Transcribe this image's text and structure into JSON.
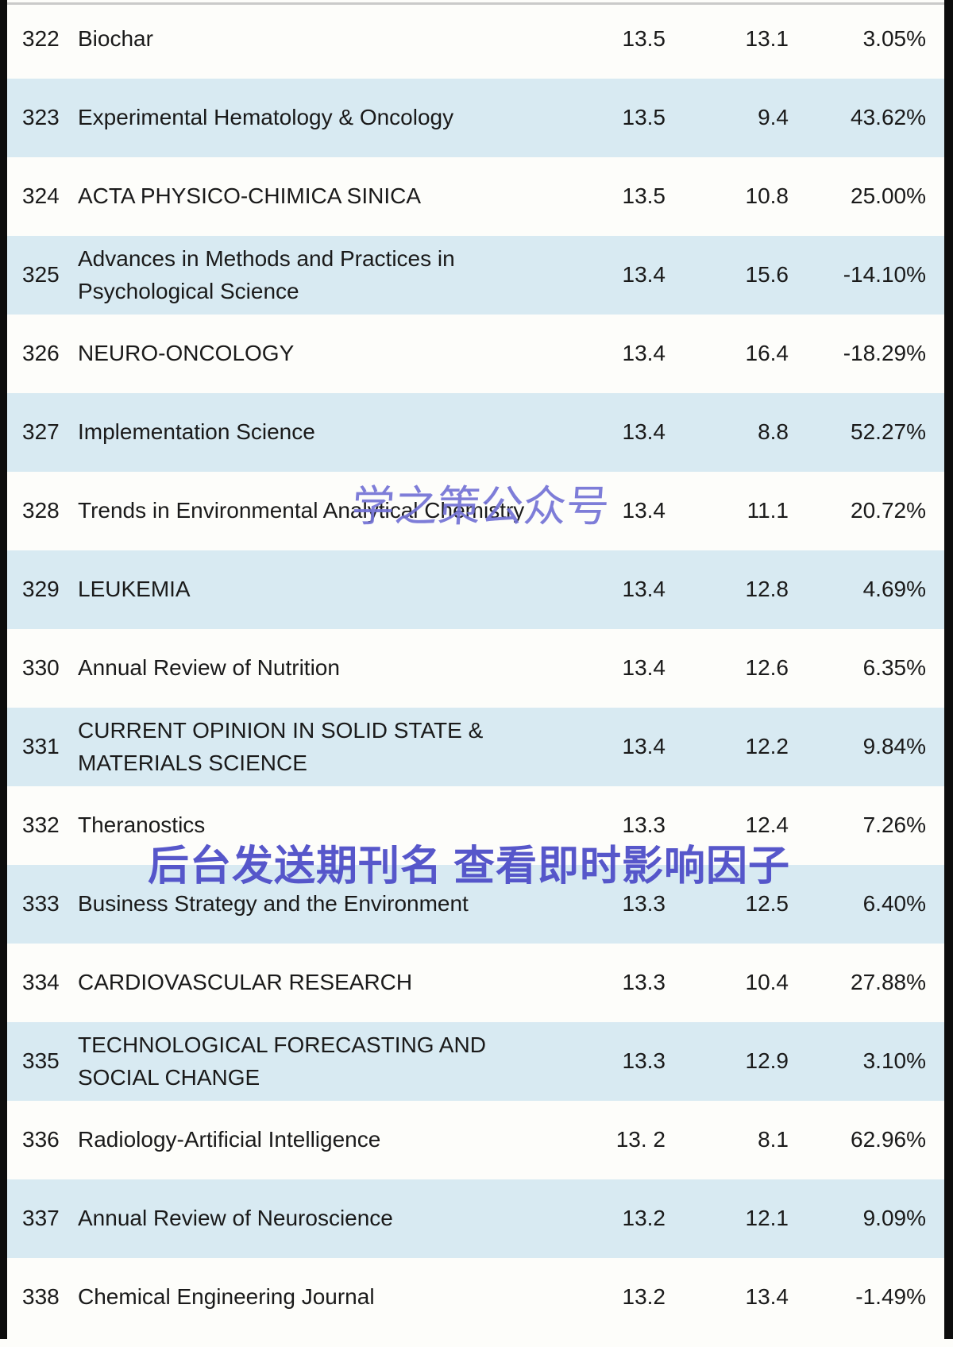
{
  "watermarks": {
    "wm1": "学之策公众号",
    "wm2": "后台发送期刊名 查看即时影响因子"
  },
  "colors": {
    "row_base": "#fdfdfa",
    "row_alt": "#d8eaf2",
    "side_border": "#0d0d0d",
    "text": "#1a1a1a",
    "watermark1": "#7473d6",
    "watermark2": "#4f4fc8"
  },
  "table": {
    "rows": [
      {
        "rank": "322",
        "name": "Biochar",
        "value1": "13.5",
        "value2": "13.1",
        "percent": "3.05%"
      },
      {
        "rank": "323",
        "name": "Experimental Hematology & Oncology",
        "value1": "13.5",
        "value2": "9.4",
        "percent": "43.62%"
      },
      {
        "rank": "324",
        "name": "ACTA PHYSICO-CHIMICA SINICA",
        "value1": "13.5",
        "value2": "10.8",
        "percent": "25.00%"
      },
      {
        "rank": "325",
        "name": "Advances in Methods and Practices in\nPsychological Science",
        "value1": "13.4",
        "value2": "15.6",
        "percent": "-14.10%"
      },
      {
        "rank": "326",
        "name": "NEURO-ONCOLOGY",
        "value1": "13.4",
        "value2": "16.4",
        "percent": "-18.29%"
      },
      {
        "rank": "327",
        "name": "Implementation Science",
        "value1": "13.4",
        "value2": "8.8",
        "percent": "52.27%"
      },
      {
        "rank": "328",
        "name": "Trends in Environmental Analytical Chemistry",
        "value1": "13.4",
        "value2": "11.1",
        "percent": "20.72%"
      },
      {
        "rank": "329",
        "name": "LEUKEMIA",
        "value1": "13.4",
        "value2": "12.8",
        "percent": "4.69%"
      },
      {
        "rank": "330",
        "name": "Annual Review of Nutrition",
        "value1": "13.4",
        "value2": "12.6",
        "percent": "6.35%"
      },
      {
        "rank": "331",
        "name": "CURRENT OPINION IN SOLID STATE &\nMATERIALS SCIENCE",
        "value1": "13.4",
        "value2": "12.2",
        "percent": "9.84%"
      },
      {
        "rank": "332",
        "name": "Theranostics",
        "value1": "13.3",
        "value2": "12.4",
        "percent": "7.26%"
      },
      {
        "rank": "333",
        "name": "Business Strategy and the Environment",
        "value1": "13.3",
        "value2": "12.5",
        "percent": "6.40%"
      },
      {
        "rank": "334",
        "name": "CARDIOVASCULAR RESEARCH",
        "value1": "13.3",
        "value2": "10.4",
        "percent": "27.88%"
      },
      {
        "rank": "335",
        "name": "TECHNOLOGICAL FORECASTING AND\nSOCIAL CHANGE",
        "value1": "13.3",
        "value2": "12.9",
        "percent": "3.10%"
      },
      {
        "rank": "336",
        "name": "Radiology-Artificial Intelligence",
        "value1": "13. 2",
        "value2": "8.1",
        "percent": "62.96%"
      },
      {
        "rank": "337",
        "name": "Annual Review of Neuroscience",
        "value1": "13.2",
        "value2": "12.1",
        "percent": "9.09%"
      },
      {
        "rank": "338",
        "name": "Chemical Engineering Journal",
        "value1": "13.2",
        "value2": "13.4",
        "percent": "-1.49%"
      }
    ]
  }
}
